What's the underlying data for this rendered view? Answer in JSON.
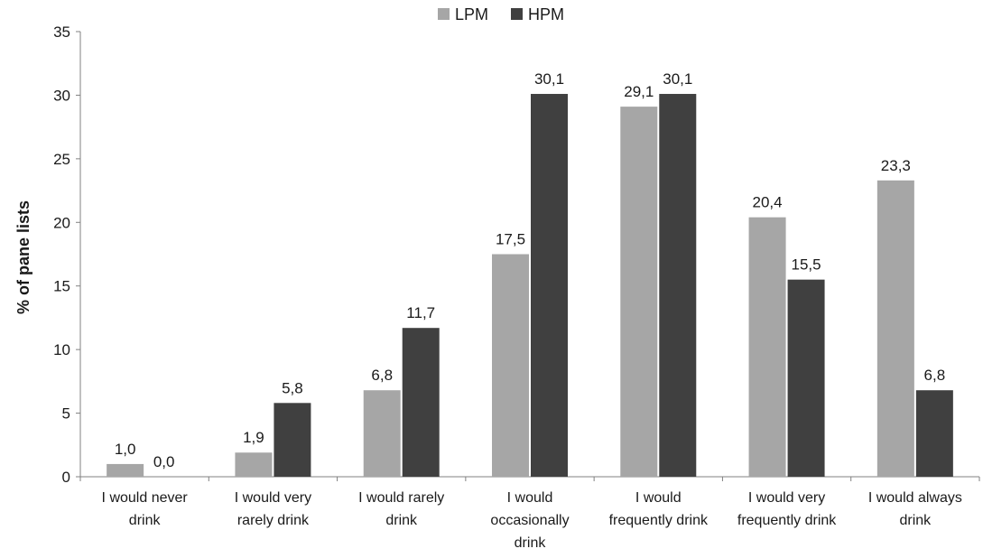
{
  "chart_data": {
    "type": "bar",
    "title": "",
    "xlabel": "",
    "ylabel": "% of pane lists",
    "ylim": [
      0,
      35
    ],
    "yticks": [
      0,
      5,
      10,
      15,
      20,
      25,
      30,
      35
    ],
    "grid": false,
    "legend_position": "top-center",
    "categories": [
      [
        "I would never",
        "drink"
      ],
      [
        "I would very",
        "rarely drink"
      ],
      [
        "I would rarely",
        "drink"
      ],
      [
        "I would",
        "occasionally",
        "drink"
      ],
      [
        "I would",
        "frequently drink"
      ],
      [
        "I would very",
        "frequently drink"
      ],
      [
        "I would always",
        "drink"
      ]
    ],
    "series": [
      {
        "name": "LPM",
        "color": "#a6a6a6",
        "values": [
          1.0,
          1.9,
          6.8,
          17.5,
          29.1,
          20.4,
          23.3
        ],
        "labels": [
          "1,0",
          "1,9",
          "6,8",
          "17,5",
          "29,1",
          "20,4",
          "23,3"
        ]
      },
      {
        "name": "HPM",
        "color": "#404040",
        "values": [
          0.0,
          5.8,
          11.7,
          30.1,
          30.1,
          15.5,
          6.8
        ],
        "labels": [
          "0,0",
          "5,8",
          "11,7",
          "30,1",
          "30,1",
          "15,5",
          "6,8"
        ]
      }
    ]
  }
}
